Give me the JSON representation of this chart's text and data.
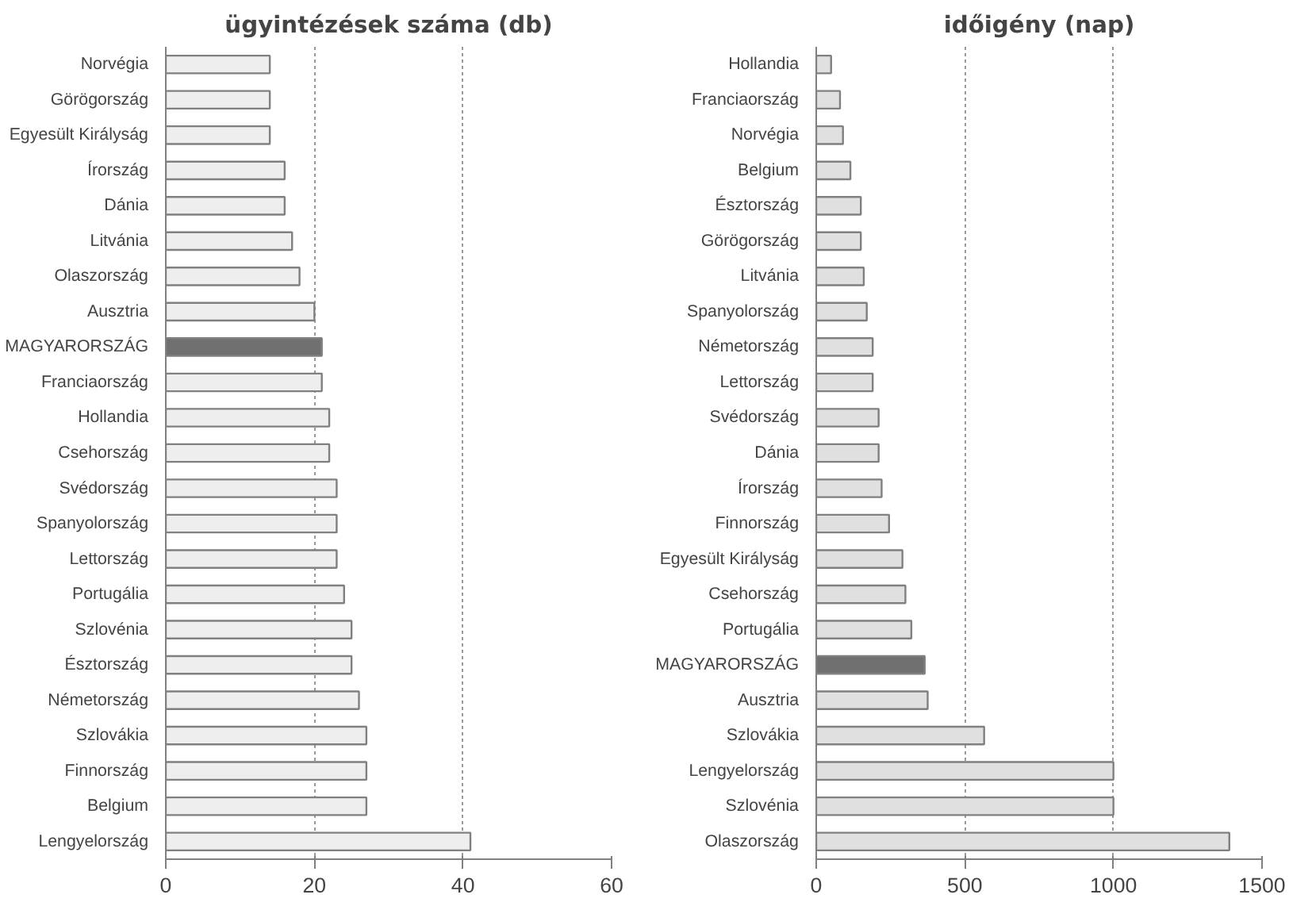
{
  "chart_data": [
    {
      "type": "bar",
      "orientation": "horizontal",
      "title": "ügyintézések száma (db)",
      "categories": [
        "Norvégia",
        "Görögország",
        "Egyesült Királyság",
        "Írország",
        "Dánia",
        "Litvánia",
        "Olaszország",
        "Ausztria",
        "MAGYARORSZÁG",
        "Franciaország",
        "Hollandia",
        "Csehország",
        "Svédország",
        "Spanyolország",
        "Lettország",
        "Portugália",
        "Szlovénia",
        "Észtország",
        "Németország",
        "Szlovákia",
        "Finnország",
        "Belgium",
        "Lengyelország"
      ],
      "values": [
        14,
        14,
        14,
        16,
        16,
        17,
        18,
        20,
        21,
        21,
        22,
        22,
        23,
        23,
        23,
        24,
        25,
        25,
        26,
        27,
        27,
        27,
        41
      ],
      "colors": [
        "#eeeeee",
        "#eeeeee",
        "#eeeeee",
        "#eeeeee",
        "#eeeeee",
        "#eeeeee",
        "#eeeeee",
        "#eeeeee",
        "#707070",
        "#eeeeee",
        "#eeeeee",
        "#eeeeee",
        "#eeeeee",
        "#eeeeee",
        "#eeeeee",
        "#eeeeee",
        "#eeeeee",
        "#eeeeee",
        "#eeeeee",
        "#eeeeee",
        "#eeeeee",
        "#eeeeee",
        "#eeeeee"
      ],
      "xlim": [
        0,
        60
      ],
      "xticks": [
        0,
        20,
        40,
        60
      ],
      "grid": "x"
    },
    {
      "type": "bar",
      "orientation": "horizontal",
      "title": "időigény (nap)",
      "categories": [
        "Hollandia",
        "Franciaország",
        "Norvégia",
        "Belgium",
        "Észtország",
        "Görögország",
        "Litvánia",
        "Spanyolország",
        "Németország",
        "Lettország",
        "Svédország",
        "Dánia",
        "Írország",
        "Finnország",
        "Egyesült Királyság",
        "Csehország",
        "Portugália",
        "MAGYARORSZÁG",
        "Ausztria",
        "Szlovákia",
        "Lengyelország",
        "Szlovénia",
        "Olaszország"
      ],
      "values": [
        50,
        80,
        90,
        115,
        150,
        150,
        160,
        170,
        190,
        190,
        210,
        210,
        220,
        245,
        290,
        300,
        320,
        365,
        375,
        565,
        1000,
        1000,
        1390
      ],
      "colors": [
        "#e0e0e0",
        "#e0e0e0",
        "#e0e0e0",
        "#e0e0e0",
        "#e0e0e0",
        "#e0e0e0",
        "#e0e0e0",
        "#e0e0e0",
        "#e0e0e0",
        "#e0e0e0",
        "#e0e0e0",
        "#e0e0e0",
        "#e0e0e0",
        "#e0e0e0",
        "#e0e0e0",
        "#e0e0e0",
        "#e0e0e0",
        "#707070",
        "#e0e0e0",
        "#e0e0e0",
        "#e0e0e0",
        "#e0e0e0",
        "#e0e0e0"
      ],
      "xlim": [
        0,
        1500
      ],
      "xticks": [
        0,
        500,
        1000,
        1500
      ],
      "grid": "x"
    }
  ]
}
